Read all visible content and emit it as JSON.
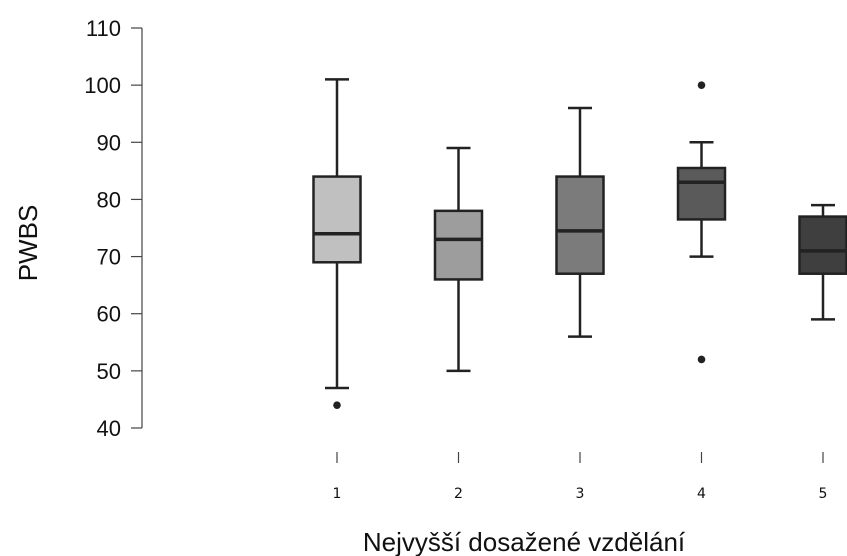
{
  "chart_data": {
    "type": "boxplot",
    "title": "",
    "xlabel": "Nejvyšší dosažené vzdělání",
    "ylabel": "PWBS",
    "ylim": [
      40,
      110
    ],
    "yticks": [
      "40",
      "50",
      "60",
      "70",
      "80",
      "90",
      "100",
      "110"
    ],
    "grid": false,
    "categories": [
      "1",
      "2",
      "3",
      "4",
      "5"
    ],
    "boxes": [
      {
        "category": "1",
        "whisker_low": 47,
        "q1": 69,
        "median": 74,
        "q3": 84,
        "whisker_high": 101,
        "outliers": [
          44
        ],
        "color": "#c0c0c0"
      },
      {
        "category": "2",
        "whisker_low": 50,
        "q1": 66,
        "median": 73,
        "q3": 78,
        "whisker_high": 89,
        "outliers": [],
        "color": "#9d9d9d"
      },
      {
        "category": "3",
        "whisker_low": 56,
        "q1": 67,
        "median": 74.5,
        "q3": 84,
        "whisker_high": 96,
        "outliers": [],
        "color": "#7b7b7b"
      },
      {
        "category": "4",
        "whisker_low": 70,
        "q1": 76.5,
        "median": 83,
        "q3": 85.5,
        "whisker_high": 90,
        "outliers": [
          100,
          52
        ],
        "color": "#5a5a5a"
      },
      {
        "category": "5",
        "whisker_low": 59,
        "q1": 67,
        "median": 71,
        "q3": 77,
        "whisker_high": 79,
        "outliers": [],
        "color": "#3f3f3f"
      }
    ]
  }
}
